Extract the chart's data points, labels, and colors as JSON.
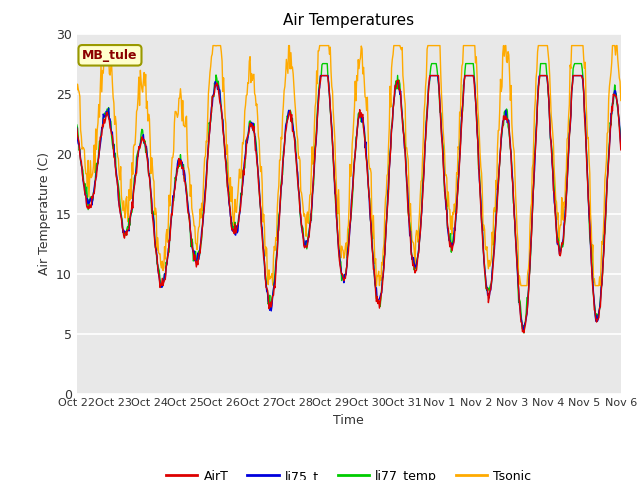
{
  "title": "Air Temperatures",
  "ylabel": "Air Temperature (C)",
  "xlabel": "Time",
  "annotation": "MB_tule",
  "ylim": [
    0,
    30
  ],
  "yticks": [
    0,
    5,
    10,
    15,
    20,
    25,
    30
  ],
  "xtick_labels": [
    "Oct 22",
    "Oct 23",
    "Oct 24",
    "Oct 25",
    "Oct 26",
    "Oct 27",
    "Oct 28",
    "Oct 29",
    "Oct 30",
    "Oct 31",
    "Nov 1",
    "Nov 2",
    "Nov 3",
    "Nov 4",
    "Nov 5",
    "Nov 6"
  ],
  "colors": {
    "AirT": "#dd0000",
    "li75_t": "#0000dd",
    "li77_temp": "#00cc00",
    "Tsonic": "#ffaa00"
  },
  "background_color": "#e8e8e8",
  "outer_background": "#ffffff",
  "grid_color": "#ffffff",
  "num_days": 15,
  "figsize": [
    6.4,
    4.8
  ],
  "dpi": 100
}
